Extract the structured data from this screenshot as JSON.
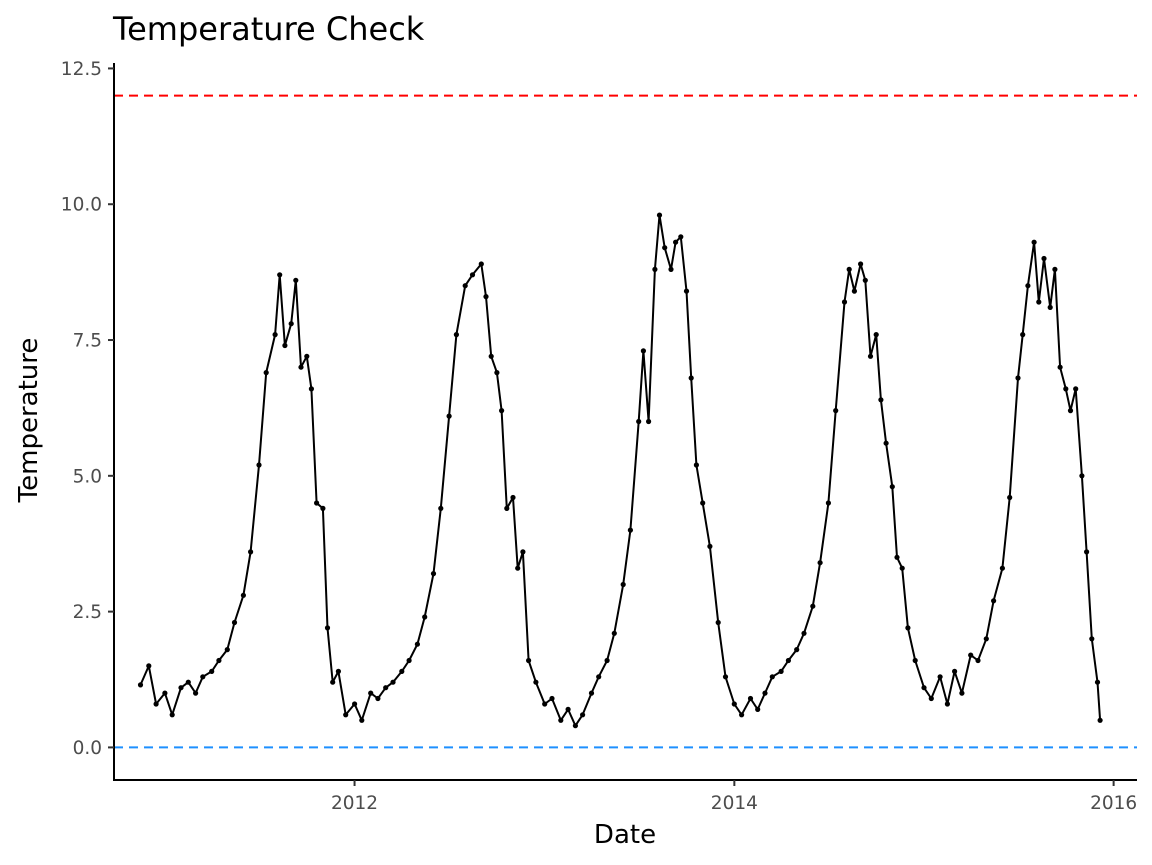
{
  "chart_data": {
    "type": "line",
    "title": "Temperature Check",
    "xlabel": "Date",
    "ylabel": "Temperature",
    "xlim": [
      "2010-09-25",
      "2016-02-15"
    ],
    "ylim": [
      -0.6,
      12.6
    ],
    "x_ticks": [
      {
        "date": "2012-01-01",
        "label": "2012"
      },
      {
        "date": "2014-01-01",
        "label": "2014"
      },
      {
        "date": "2016-01-01",
        "label": "2016"
      }
    ],
    "y_ticks": [
      {
        "value": 0,
        "label": "0.0"
      },
      {
        "value": 2.5,
        "label": "2.5"
      },
      {
        "value": 5,
        "label": "5.0"
      },
      {
        "value": 7.5,
        "label": "7.5"
      },
      {
        "value": 10,
        "label": "10.0"
      },
      {
        "value": 12.5,
        "label": "12.5"
      }
    ],
    "reference_lines": [
      {
        "value": 12,
        "color": "#ff0000",
        "style": "dashed"
      },
      {
        "value": 0,
        "color": "#1e90ff",
        "style": "dashed"
      }
    ],
    "grid": false,
    "series": [
      {
        "color": "#000000",
        "points": [
          [
            "2010-11-15",
            1.15
          ],
          [
            "2010-12-01",
            1.5
          ],
          [
            "2010-12-15",
            0.8
          ],
          [
            "2011-01-01",
            1.0
          ],
          [
            "2011-01-15",
            0.6
          ],
          [
            "2011-02-01",
            1.1
          ],
          [
            "2011-02-15",
            1.2
          ],
          [
            "2011-03-01",
            1.0
          ],
          [
            "2011-03-15",
            1.3
          ],
          [
            "2011-04-01",
            1.4
          ],
          [
            "2011-04-15",
            1.6
          ],
          [
            "2011-05-01",
            1.8
          ],
          [
            "2011-05-15",
            2.3
          ],
          [
            "2011-06-01",
            2.8
          ],
          [
            "2011-06-15",
            3.6
          ],
          [
            "2011-07-01",
            5.2
          ],
          [
            "2011-07-15",
            6.9
          ],
          [
            "2011-08-01",
            7.6
          ],
          [
            "2011-08-10",
            8.7
          ],
          [
            "2011-08-20",
            7.4
          ],
          [
            "2011-09-01",
            7.8
          ],
          [
            "2011-09-10",
            8.6
          ],
          [
            "2011-09-20",
            7.0
          ],
          [
            "2011-10-01",
            7.2
          ],
          [
            "2011-10-10",
            6.6
          ],
          [
            "2011-10-20",
            4.5
          ],
          [
            "2011-11-01",
            4.4
          ],
          [
            "2011-11-10",
            2.2
          ],
          [
            "2011-11-20",
            1.2
          ],
          [
            "2011-12-01",
            1.4
          ],
          [
            "2011-12-15",
            0.6
          ],
          [
            "2012-01-01",
            0.8
          ],
          [
            "2012-01-15",
            0.5
          ],
          [
            "2012-02-01",
            1.0
          ],
          [
            "2012-02-15",
            0.9
          ],
          [
            "2012-03-01",
            1.1
          ],
          [
            "2012-03-15",
            1.2
          ],
          [
            "2012-04-01",
            1.4
          ],
          [
            "2012-04-15",
            1.6
          ],
          [
            "2012-05-01",
            1.9
          ],
          [
            "2012-05-15",
            2.4
          ],
          [
            "2012-06-01",
            3.2
          ],
          [
            "2012-06-15",
            4.4
          ],
          [
            "2012-07-01",
            6.1
          ],
          [
            "2012-07-15",
            7.6
          ],
          [
            "2012-08-01",
            8.5
          ],
          [
            "2012-08-15",
            8.7
          ],
          [
            "2012-09-01",
            8.9
          ],
          [
            "2012-09-10",
            8.3
          ],
          [
            "2012-09-20",
            7.2
          ],
          [
            "2012-10-01",
            6.9
          ],
          [
            "2012-10-10",
            6.2
          ],
          [
            "2012-10-20",
            4.4
          ],
          [
            "2012-11-01",
            4.6
          ],
          [
            "2012-11-10",
            3.3
          ],
          [
            "2012-11-20",
            3.6
          ],
          [
            "2012-12-01",
            1.6
          ],
          [
            "2012-12-15",
            1.2
          ],
          [
            "2013-01-01",
            0.8
          ],
          [
            "2013-01-15",
            0.9
          ],
          [
            "2013-02-01",
            0.5
          ],
          [
            "2013-02-15",
            0.7
          ],
          [
            "2013-03-01",
            0.4
          ],
          [
            "2013-03-15",
            0.6
          ],
          [
            "2013-04-01",
            1.0
          ],
          [
            "2013-04-15",
            1.3
          ],
          [
            "2013-05-01",
            1.6
          ],
          [
            "2013-05-15",
            2.1
          ],
          [
            "2013-06-01",
            3.0
          ],
          [
            "2013-06-15",
            4.0
          ],
          [
            "2013-07-01",
            6.0
          ],
          [
            "2013-07-10",
            7.3
          ],
          [
            "2013-07-20",
            6.0
          ],
          [
            "2013-08-01",
            8.8
          ],
          [
            "2013-08-10",
            9.8
          ],
          [
            "2013-08-20",
            9.2
          ],
          [
            "2013-09-01",
            8.8
          ],
          [
            "2013-09-10",
            9.3
          ],
          [
            "2013-09-20",
            9.4
          ],
          [
            "2013-10-01",
            8.4
          ],
          [
            "2013-10-10",
            6.8
          ],
          [
            "2013-10-20",
            5.2
          ],
          [
            "2013-11-01",
            4.5
          ],
          [
            "2013-11-15",
            3.7
          ],
          [
            "2013-12-01",
            2.3
          ],
          [
            "2013-12-15",
            1.3
          ],
          [
            "2014-01-01",
            0.8
          ],
          [
            "2014-01-15",
            0.6
          ],
          [
            "2014-02-01",
            0.9
          ],
          [
            "2014-02-15",
            0.7
          ],
          [
            "2014-03-01",
            1.0
          ],
          [
            "2014-03-15",
            1.3
          ],
          [
            "2014-04-01",
            1.4
          ],
          [
            "2014-04-15",
            1.6
          ],
          [
            "2014-05-01",
            1.8
          ],
          [
            "2014-05-15",
            2.1
          ],
          [
            "2014-06-01",
            2.6
          ],
          [
            "2014-06-15",
            3.4
          ],
          [
            "2014-07-01",
            4.5
          ],
          [
            "2014-07-15",
            6.2
          ],
          [
            "2014-08-01",
            8.2
          ],
          [
            "2014-08-10",
            8.8
          ],
          [
            "2014-08-20",
            8.4
          ],
          [
            "2014-09-01",
            8.9
          ],
          [
            "2014-09-10",
            8.6
          ],
          [
            "2014-09-20",
            7.2
          ],
          [
            "2014-10-01",
            7.6
          ],
          [
            "2014-10-10",
            6.4
          ],
          [
            "2014-10-20",
            5.6
          ],
          [
            "2014-11-01",
            4.8
          ],
          [
            "2014-11-10",
            3.5
          ],
          [
            "2014-11-20",
            3.3
          ],
          [
            "2014-12-01",
            2.2
          ],
          [
            "2014-12-15",
            1.6
          ],
          [
            "2015-01-01",
            1.1
          ],
          [
            "2015-01-15",
            0.9
          ],
          [
            "2015-02-01",
            1.3
          ],
          [
            "2015-02-15",
            0.8
          ],
          [
            "2015-03-01",
            1.4
          ],
          [
            "2015-03-15",
            1.0
          ],
          [
            "2015-04-01",
            1.7
          ],
          [
            "2015-04-15",
            1.6
          ],
          [
            "2015-05-01",
            2.0
          ],
          [
            "2015-05-15",
            2.7
          ],
          [
            "2015-06-01",
            3.3
          ],
          [
            "2015-06-15",
            4.6
          ],
          [
            "2015-07-01",
            6.8
          ],
          [
            "2015-07-10",
            7.6
          ],
          [
            "2015-07-20",
            8.5
          ],
          [
            "2015-08-01",
            9.3
          ],
          [
            "2015-08-10",
            8.2
          ],
          [
            "2015-08-20",
            9.0
          ],
          [
            "2015-09-01",
            8.1
          ],
          [
            "2015-09-10",
            8.8
          ],
          [
            "2015-09-20",
            7.0
          ],
          [
            "2015-10-01",
            6.6
          ],
          [
            "2015-10-10",
            6.2
          ],
          [
            "2015-10-20",
            6.6
          ],
          [
            "2015-11-01",
            5.0
          ],
          [
            "2015-11-10",
            3.6
          ],
          [
            "2015-11-20",
            2.0
          ],
          [
            "2015-12-01",
            1.2
          ],
          [
            "2015-12-06",
            0.5
          ]
        ]
      }
    ]
  }
}
